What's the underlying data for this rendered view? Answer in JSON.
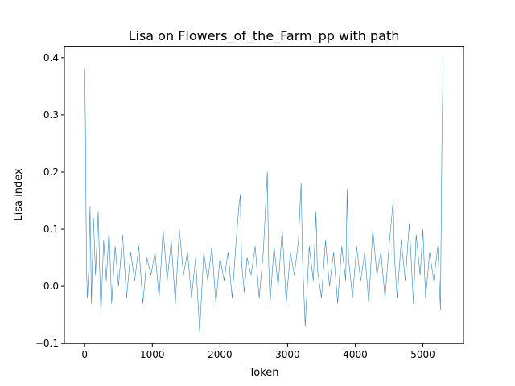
{
  "chart_data": {
    "type": "line",
    "title": "Lisa on Flowers_of_the_Farm_pp with path",
    "xlabel": "Token",
    "ylabel": "Lisa index",
    "xlim": [
      -300,
      5600
    ],
    "ylim": [
      -0.1,
      0.42
    ],
    "xticks": [
      0,
      1000,
      2000,
      3000,
      4000,
      5000
    ],
    "xtick_labels": [
      "0",
      "1000",
      "2000",
      "3000",
      "4000",
      "5000"
    ],
    "yticks": [
      -0.1,
      0.0,
      0.1,
      0.2,
      0.3,
      0.4
    ],
    "ytick_labels": [
      "−0.1",
      "0.0",
      "0.1",
      "0.2",
      "0.3",
      "0.4"
    ],
    "grid": false,
    "series": [
      {
        "color": "#1f77b4",
        "x": [
          0,
          10,
          20,
          30,
          40,
          60,
          80,
          100,
          130,
          160,
          200,
          240,
          280,
          320,
          360,
          400,
          450,
          500,
          560,
          620,
          680,
          740,
          800,
          860,
          920,
          980,
          1040,
          1100,
          1160,
          1220,
          1280,
          1340,
          1400,
          1460,
          1520,
          1580,
          1640,
          1700,
          1760,
          1820,
          1880,
          1940,
          2000,
          2060,
          2120,
          2180,
          2240,
          2280,
          2300,
          2320,
          2360,
          2400,
          2460,
          2520,
          2580,
          2640,
          2700,
          2720,
          2740,
          2800,
          2860,
          2920,
          2980,
          3040,
          3100,
          3160,
          3200,
          3220,
          3260,
          3320,
          3380,
          3420,
          3440,
          3500,
          3560,
          3620,
          3680,
          3740,
          3800,
          3860,
          3880,
          3900,
          3960,
          4020,
          4080,
          4140,
          4200,
          4260,
          4320,
          4380,
          4440,
          4500,
          4560,
          4580,
          4620,
          4680,
          4740,
          4800,
          4860,
          4900,
          4960,
          5000,
          5040,
          5100,
          5160,
          5220,
          5260,
          5280,
          5300
        ],
        "y": [
          0.38,
          0.29,
          0.13,
          0.02,
          -0.02,
          0.03,
          0.14,
          -0.03,
          0.12,
          0.02,
          0.13,
          -0.05,
          0.08,
          0.01,
          0.1,
          -0.03,
          0.07,
          0.0,
          0.09,
          -0.02,
          0.06,
          0.01,
          0.07,
          -0.03,
          0.05,
          0.02,
          0.06,
          -0.02,
          0.1,
          0.01,
          0.08,
          -0.03,
          0.1,
          0.02,
          0.06,
          -0.02,
          0.05,
          -0.08,
          0.06,
          0.01,
          0.07,
          -0.03,
          0.05,
          0.01,
          0.06,
          -0.02,
          0.08,
          0.14,
          0.16,
          0.04,
          -0.01,
          0.05,
          0.02,
          0.07,
          -0.02,
          0.06,
          0.2,
          0.04,
          -0.03,
          0.07,
          0.0,
          0.1,
          -0.03,
          0.06,
          0.02,
          0.08,
          0.18,
          0.05,
          -0.07,
          0.07,
          0.01,
          0.13,
          0.03,
          -0.02,
          0.08,
          0.0,
          0.06,
          -0.03,
          0.07,
          0.01,
          0.17,
          0.05,
          -0.02,
          0.07,
          0.01,
          0.06,
          -0.03,
          0.1,
          0.02,
          0.06,
          -0.02,
          0.07,
          0.15,
          0.05,
          -0.02,
          0.08,
          0.01,
          0.11,
          -0.03,
          0.09,
          0.02,
          0.1,
          -0.02,
          0.06,
          0.01,
          0.07,
          -0.04,
          0.24,
          0.4
        ]
      }
    ]
  }
}
